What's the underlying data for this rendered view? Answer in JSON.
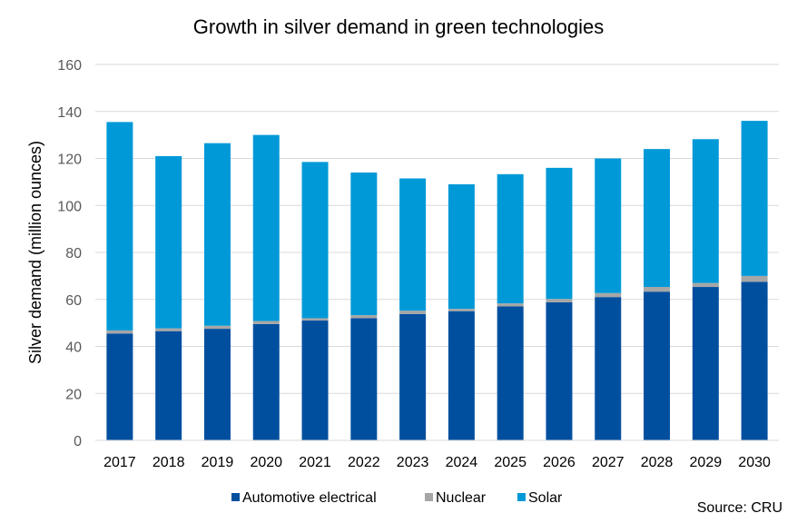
{
  "chart_data": {
    "type": "bar",
    "stacked": true,
    "title": "Growth in silver demand in green technologies",
    "ylabel": "Silver demand (million ounces)",
    "xlabel": "",
    "ylim": [
      0,
      160
    ],
    "yticks": [
      0,
      20,
      40,
      60,
      80,
      100,
      120,
      140,
      160
    ],
    "grid": true,
    "legend_position": "bottom",
    "categories": [
      "2017",
      "2018",
      "2019",
      "2020",
      "2021",
      "2022",
      "2023",
      "2024",
      "2025",
      "2026",
      "2027",
      "2028",
      "2029",
      "2030"
    ],
    "series": [
      {
        "name": "Automotive electrical",
        "color": "#004f9f",
        "values": [
          45.5,
          46.5,
          47.5,
          49.5,
          51,
          52,
          53.8,
          55,
          57,
          58.8,
          61,
          63.3,
          65.3,
          67.5
        ]
      },
      {
        "name": "Nuclear",
        "color": "#a6a6a6",
        "values": [
          1.3,
          1.2,
          1.3,
          1.3,
          1.0,
          1.3,
          1.4,
          1.0,
          1.3,
          1.4,
          1.7,
          2.0,
          1.7,
          2.5
        ]
      },
      {
        "name": "Solar",
        "color": "#0099d8",
        "values": [
          88.7,
          73.3,
          77.7,
          79.2,
          66.5,
          60.7,
          56.3,
          53.0,
          55.0,
          55.8,
          57.3,
          58.7,
          61.2,
          66.0
        ]
      }
    ],
    "source": "Source: CRU"
  }
}
